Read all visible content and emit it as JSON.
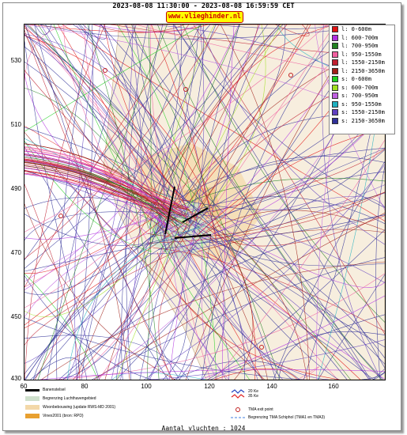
{
  "header": {
    "time_range": "2023-08-08 11:30:00 - 2023-08-08 16:59:59 CET",
    "site_label": "www.vlieghinder.nl"
  },
  "axes": {
    "y_ticks": [
      "530",
      "510",
      "490",
      "470",
      "450",
      "430"
    ],
    "x_ticks": [
      "60",
      "80",
      "100",
      "120",
      "140",
      "160"
    ]
  },
  "legend": {
    "items": [
      {
        "label": "l: 0-600m",
        "color": "#e01010"
      },
      {
        "label": "l: 600-700m",
        "color": "#b030e0"
      },
      {
        "label": "l: 700-950m",
        "color": "#208020"
      },
      {
        "label": "l: 950-1550m",
        "color": "#f060a0"
      },
      {
        "label": "l: 1550-2150m",
        "color": "#c02030"
      },
      {
        "label": "l: 2150-3650m",
        "color": "#a02018"
      },
      {
        "label": "s: 0-600m",
        "color": "#20d020"
      },
      {
        "label": "s: 600-700m",
        "color": "#a0e020"
      },
      {
        "label": "s: 700-950m",
        "color": "#c060e0"
      },
      {
        "label": "s: 950-1550m",
        "color": "#20b0c0"
      },
      {
        "label": "s: 1550-2150m",
        "color": "#6040c0"
      },
      {
        "label": "s: 2150-3650m",
        "color": "#303098"
      }
    ]
  },
  "footer": {
    "runway_label": "Banenstelsel",
    "airport_zone_label": "Begrenzing Luchthavengebied",
    "housing_label": "Woonbebouwing (update RWS-MD 2001)",
    "vinex_label": "Vinex2001 (bron: RPD)",
    "noise_label_20": "20 Ke",
    "noise_label_35": "35 Ke",
    "tma_exit_label": "TMA exit point",
    "tma_border_label": "Begrenzing TMA Schiphol  (TMA1 en TMA3)"
  },
  "summary": {
    "count_text": "Aantal vluchten : 1024"
  }
}
